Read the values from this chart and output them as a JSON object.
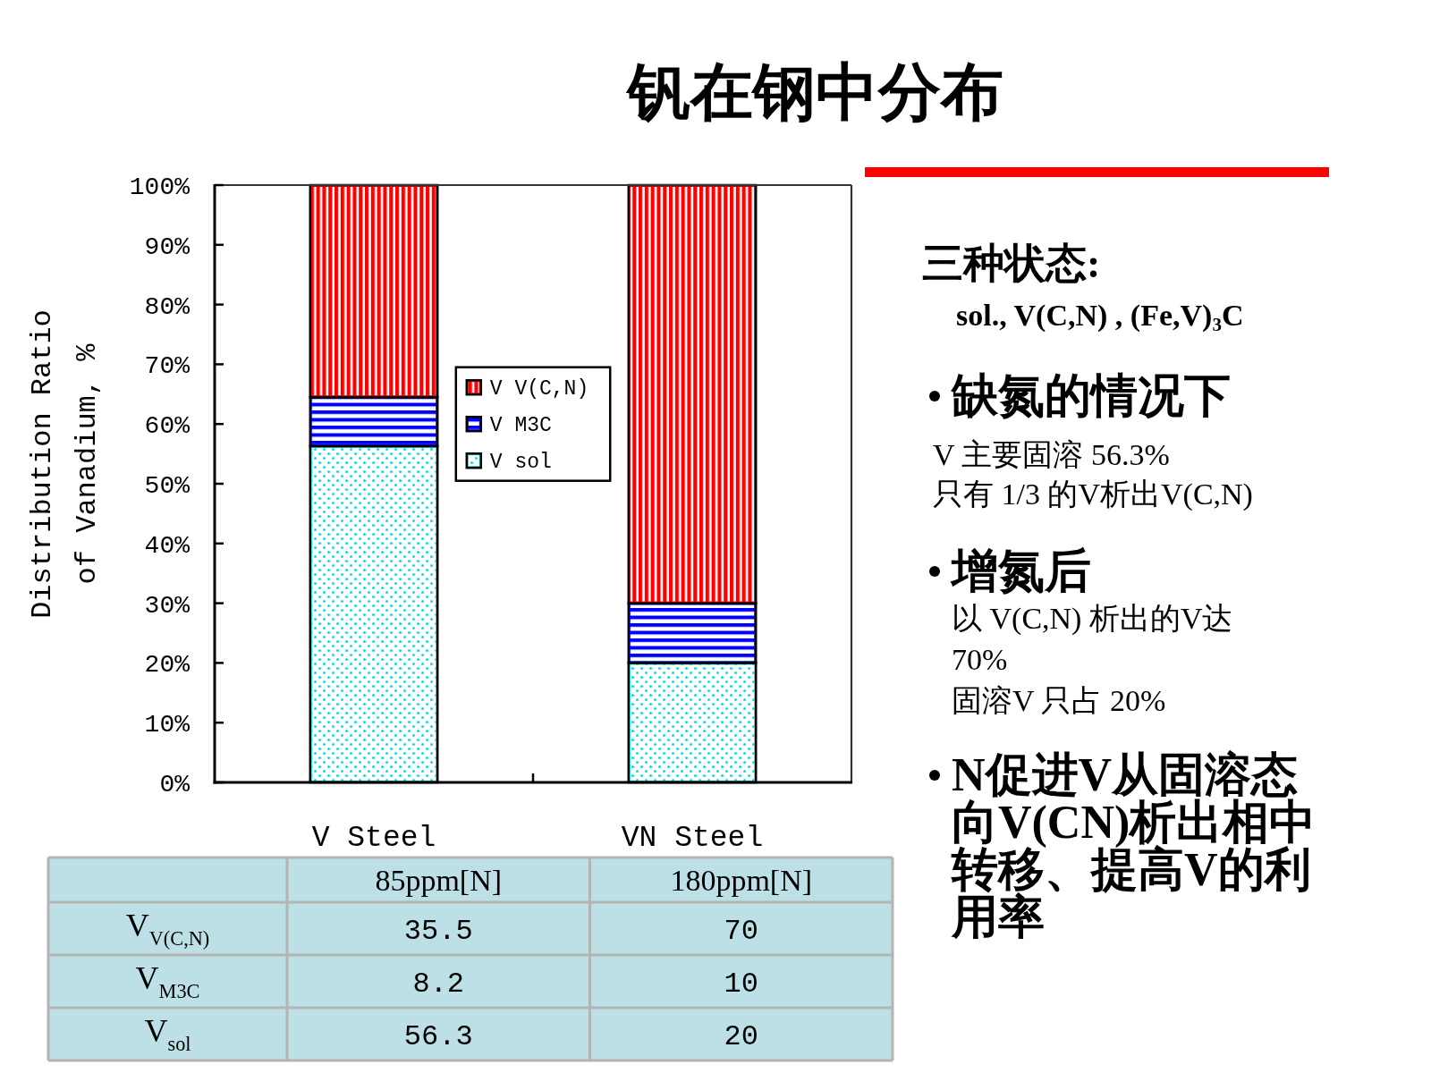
{
  "chart_data": [
    {
      "type": "bar",
      "title": "钒在钢中分布",
      "ylabel": "Distribution Ratio of Vanadium, %",
      "categories": [
        "V Steel",
        "VN Steel"
      ],
      "series": [
        {
          "name": "V sol",
          "color": "#00e0e0",
          "values": [
            56.3,
            20
          ]
        },
        {
          "name": "V M3C",
          "color": "#0000ff",
          "values": [
            8.2,
            10
          ]
        },
        {
          "name": "V V(C,N)",
          "color": "#ff0000",
          "values": [
            35.5,
            70
          ]
        }
      ],
      "stacked": true,
      "ylim": [
        0,
        100
      ],
      "yticks": [
        {
          "value": 0,
          "label": "0%"
        },
        {
          "value": 10,
          "label": "10%"
        },
        {
          "value": 20,
          "label": "20%"
        },
        {
          "value": 30,
          "label": "30%"
        },
        {
          "value": 40,
          "label": "40%"
        },
        {
          "value": 50,
          "label": "50%"
        },
        {
          "value": 60,
          "label": "60%"
        },
        {
          "value": 70,
          "label": "70%"
        },
        {
          "value": 80,
          "label": "80%"
        },
        {
          "value": 90,
          "label": "90%"
        },
        {
          "value": 100,
          "label": "100%"
        }
      ],
      "legend": "center",
      "data_labels": true,
      "annotations": [
        "85ppm[N]",
        "180ppm[N]",
        "V$_{V(C,N)}$",
        "V$_{M3C}$",
        "V$_{sol}$"
      ]
    },
    {
      "type": "other",
      "title": "三种状态:",
      "subtitle": "sol., V(C,N) , (Fe,V)$_{3}$C"
    },
    {
      "type": "other",
      "title": "缺氮的情况下",
      "annotations": [
        "V 主要固溶 56.3%",
        "只有 1/3 的V析出V(C,N)"
      ]
    },
    {
      "type": "other",
      "title": "增氮后",
      "annotations": [
        "以 V(C,N) 析出的V达 70%",
        "固溶V 只占 20%"
      ]
    },
    {
      "type": "other",
      "title": "N促进V从固溶态向V(CN)析出相中转移、提高V的利用率"
    }
  ]
}
